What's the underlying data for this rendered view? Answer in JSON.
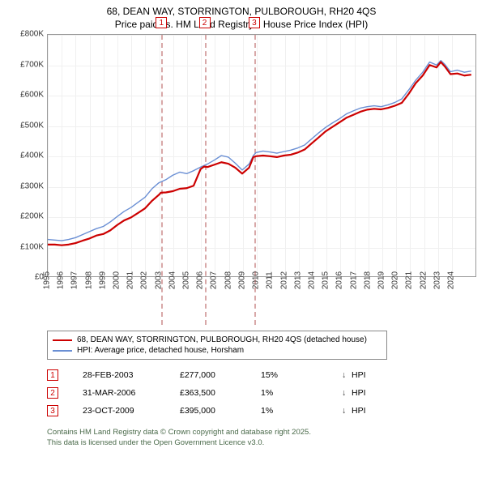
{
  "title": {
    "line1": "68, DEAN WAY, STORRINGTON, PULBOROUGH, RH20 4QS",
    "line2": "Price paid vs. HM Land Registry's House Price Index (HPI)"
  },
  "chart": {
    "type": "line",
    "xlim": [
      1995,
      2025.8
    ],
    "ylim": [
      0,
      800000
    ],
    "ytick_step": 100000,
    "yticks": [
      "£0",
      "£100K",
      "£200K",
      "£300K",
      "£400K",
      "£500K",
      "£600K",
      "£700K",
      "£800K"
    ],
    "xticks": [
      "1995",
      "1996",
      "1997",
      "1998",
      "1999",
      "2000",
      "2001",
      "2002",
      "2003",
      "2004",
      "2005",
      "2006",
      "2007",
      "2008",
      "2009",
      "2010",
      "2011",
      "2012",
      "2013",
      "2014",
      "2015",
      "2016",
      "2017",
      "2018",
      "2019",
      "2020",
      "2021",
      "2022",
      "2023",
      "2024"
    ],
    "background_color": "#ffffff",
    "grid_color": "#f0f0f0",
    "axis_color": "#999999",
    "line_width_main": 2.2,
    "line_width_ref": 1.4,
    "series": [
      {
        "name": "price_paid",
        "label": "68, DEAN WAY, STORRINGTON, PULBOROUGH, RH20 4QS (detached house)",
        "color": "#cc0000",
        "points": [
          [
            1995.0,
            105000
          ],
          [
            1995.5,
            105000
          ],
          [
            1996.0,
            103000
          ],
          [
            1996.5,
            105000
          ],
          [
            1997.0,
            110000
          ],
          [
            1997.5,
            118000
          ],
          [
            1998.0,
            125000
          ],
          [
            1998.5,
            135000
          ],
          [
            1999.0,
            140000
          ],
          [
            1999.5,
            152000
          ],
          [
            2000.0,
            170000
          ],
          [
            2000.5,
            185000
          ],
          [
            2001.0,
            195000
          ],
          [
            2001.5,
            210000
          ],
          [
            2002.0,
            225000
          ],
          [
            2002.5,
            250000
          ],
          [
            2003.0,
            270000
          ],
          [
            2003.15,
            277000
          ],
          [
            2003.5,
            278000
          ],
          [
            2004.0,
            282000
          ],
          [
            2004.5,
            290000
          ],
          [
            2005.0,
            292000
          ],
          [
            2005.5,
            300000
          ],
          [
            2006.0,
            355000
          ],
          [
            2006.25,
            363500
          ],
          [
            2006.5,
            362000
          ],
          [
            2007.0,
            370000
          ],
          [
            2007.5,
            378000
          ],
          [
            2008.0,
            373000
          ],
          [
            2008.5,
            360000
          ],
          [
            2009.0,
            340000
          ],
          [
            2009.5,
            360000
          ],
          [
            2009.8,
            395000
          ],
          [
            2010.0,
            398000
          ],
          [
            2010.5,
            400000
          ],
          [
            2011.0,
            398000
          ],
          [
            2011.5,
            395000
          ],
          [
            2012.0,
            400000
          ],
          [
            2012.5,
            403000
          ],
          [
            2013.0,
            410000
          ],
          [
            2013.5,
            420000
          ],
          [
            2014.0,
            440000
          ],
          [
            2014.5,
            460000
          ],
          [
            2015.0,
            480000
          ],
          [
            2015.5,
            495000
          ],
          [
            2016.0,
            510000
          ],
          [
            2016.5,
            525000
          ],
          [
            2017.0,
            535000
          ],
          [
            2017.5,
            545000
          ],
          [
            2018.0,
            552000
          ],
          [
            2018.5,
            555000
          ],
          [
            2019.0,
            553000
          ],
          [
            2019.5,
            558000
          ],
          [
            2020.0,
            565000
          ],
          [
            2020.5,
            575000
          ],
          [
            2021.0,
            605000
          ],
          [
            2021.5,
            640000
          ],
          [
            2022.0,
            665000
          ],
          [
            2022.5,
            700000
          ],
          [
            2023.0,
            692000
          ],
          [
            2023.3,
            710000
          ],
          [
            2023.6,
            695000
          ],
          [
            2024.0,
            670000
          ],
          [
            2024.5,
            672000
          ],
          [
            2025.0,
            665000
          ],
          [
            2025.5,
            668000
          ]
        ]
      },
      {
        "name": "hpi",
        "label": "HPI: Average price, detached house, Horsham",
        "color": "#6a8fd4",
        "points": [
          [
            1995.0,
            122000
          ],
          [
            1995.5,
            120000
          ],
          [
            1996.0,
            118000
          ],
          [
            1996.5,
            122000
          ],
          [
            1997.0,
            128000
          ],
          [
            1997.5,
            138000
          ],
          [
            1998.0,
            148000
          ],
          [
            1998.5,
            158000
          ],
          [
            1999.0,
            165000
          ],
          [
            1999.5,
            180000
          ],
          [
            2000.0,
            198000
          ],
          [
            2000.5,
            215000
          ],
          [
            2001.0,
            228000
          ],
          [
            2001.5,
            245000
          ],
          [
            2002.0,
            262000
          ],
          [
            2002.5,
            290000
          ],
          [
            2003.0,
            310000
          ],
          [
            2003.5,
            320000
          ],
          [
            2004.0,
            335000
          ],
          [
            2004.5,
            345000
          ],
          [
            2005.0,
            340000
          ],
          [
            2005.5,
            350000
          ],
          [
            2006.0,
            362000
          ],
          [
            2006.5,
            372000
          ],
          [
            2007.0,
            385000
          ],
          [
            2007.5,
            400000
          ],
          [
            2008.0,
            395000
          ],
          [
            2008.5,
            375000
          ],
          [
            2009.0,
            352000
          ],
          [
            2009.5,
            372000
          ],
          [
            2009.8,
            400000
          ],
          [
            2010.0,
            410000
          ],
          [
            2010.5,
            415000
          ],
          [
            2011.0,
            412000
          ],
          [
            2011.5,
            408000
          ],
          [
            2012.0,
            413000
          ],
          [
            2012.5,
            418000
          ],
          [
            2013.0,
            425000
          ],
          [
            2013.5,
            435000
          ],
          [
            2014.0,
            455000
          ],
          [
            2014.5,
            475000
          ],
          [
            2015.0,
            493000
          ],
          [
            2015.5,
            508000
          ],
          [
            2016.0,
            522000
          ],
          [
            2016.5,
            538000
          ],
          [
            2017.0,
            548000
          ],
          [
            2017.5,
            557000
          ],
          [
            2018.0,
            562000
          ],
          [
            2018.5,
            565000
          ],
          [
            2019.0,
            562000
          ],
          [
            2019.5,
            568000
          ],
          [
            2020.0,
            576000
          ],
          [
            2020.5,
            588000
          ],
          [
            2021.0,
            618000
          ],
          [
            2021.5,
            650000
          ],
          [
            2022.0,
            676000
          ],
          [
            2022.5,
            710000
          ],
          [
            2023.0,
            700000
          ],
          [
            2023.3,
            715000
          ],
          [
            2023.6,
            702000
          ],
          [
            2024.0,
            678000
          ],
          [
            2024.5,
            683000
          ],
          [
            2025.0,
            676000
          ],
          [
            2025.5,
            680000
          ]
        ]
      }
    ],
    "markers": [
      {
        "n": "1",
        "x": 2003.15
      },
      {
        "n": "2",
        "x": 2006.25
      },
      {
        "n": "3",
        "x": 2009.81
      }
    ]
  },
  "legend": {
    "row1": "68, DEAN WAY, STORRINGTON, PULBOROUGH, RH20 4QS (detached house)",
    "row2": "HPI: Average price, detached house, Horsham"
  },
  "sales": [
    {
      "n": "1",
      "date": "28-FEB-2003",
      "price": "£277,000",
      "pct": "15%",
      "arrow": "↓",
      "hpi": "HPI"
    },
    {
      "n": "2",
      "date": "31-MAR-2006",
      "price": "£363,500",
      "pct": "1%",
      "arrow": "↓",
      "hpi": "HPI"
    },
    {
      "n": "3",
      "date": "23-OCT-2009",
      "price": "£395,000",
      "pct": "1%",
      "arrow": "↓",
      "hpi": "HPI"
    }
  ],
  "footer": {
    "line1": "Contains HM Land Registry data © Crown copyright and database right 2025.",
    "line2": "This data is licensed under the Open Government Licence v3.0."
  }
}
